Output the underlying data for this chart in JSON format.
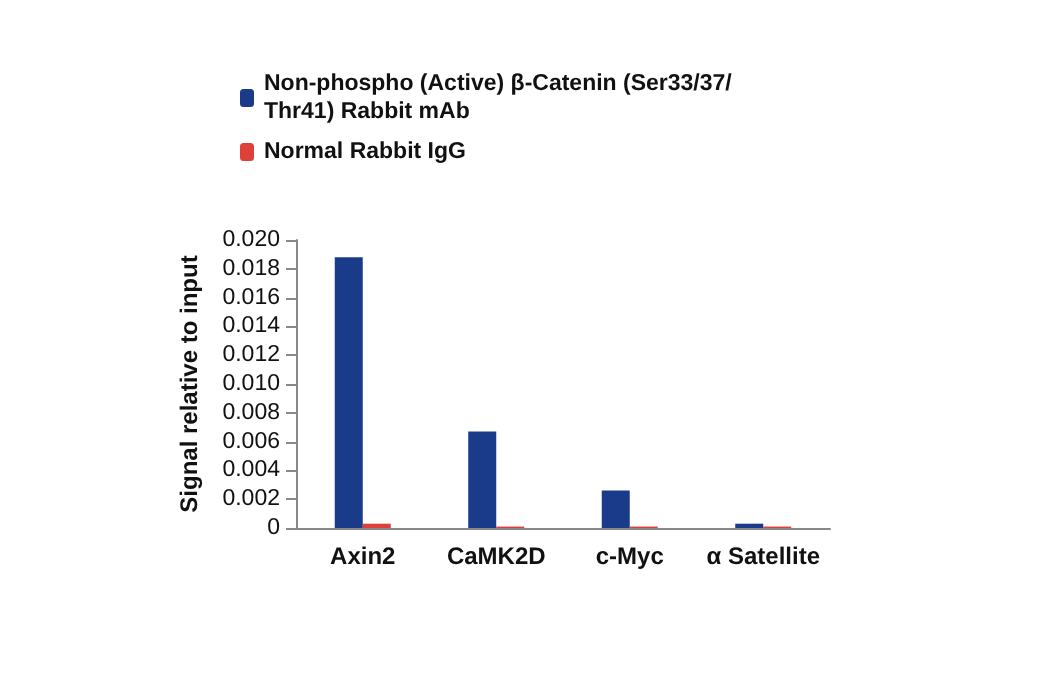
{
  "chart_data": {
    "type": "bar",
    "ylabel": "Signal relative to input",
    "categories": [
      "Axin2",
      "CaMK2D",
      "c-Myc",
      "α Satellite"
    ],
    "series": [
      {
        "name": "Non-phospho (Active) β-Catenin (Ser33/37/Thr41) Rabbit mAb",
        "color": "#1a3a8a",
        "values": [
          0.0188,
          0.0067,
          0.0026,
          0.0003
        ]
      },
      {
        "name": "Normal Rabbit IgG",
        "color": "#e0403a",
        "values": [
          0.0003,
          0.0001,
          0.0001,
          0.0001
        ]
      }
    ],
    "ylim": [
      0,
      0.02
    ],
    "yticks": [
      0,
      {
        "value": 0.002,
        "label": "0.002"
      },
      {
        "value": 0.004,
        "label": "0.004"
      },
      {
        "value": 0.006,
        "label": "0.006"
      },
      {
        "value": 0.008,
        "label": "0.008"
      },
      {
        "value": 0.01,
        "label": "0.010"
      },
      {
        "value": 0.012,
        "label": "0.012"
      },
      {
        "value": 0.014,
        "label": "0.014"
      },
      {
        "value": 0.016,
        "label": "0.016"
      },
      {
        "value": 0.018,
        "label": "0.018"
      },
      {
        "value": 0.02,
        "label": "0.020"
      }
    ],
    "grid": false,
    "legend": "top"
  }
}
